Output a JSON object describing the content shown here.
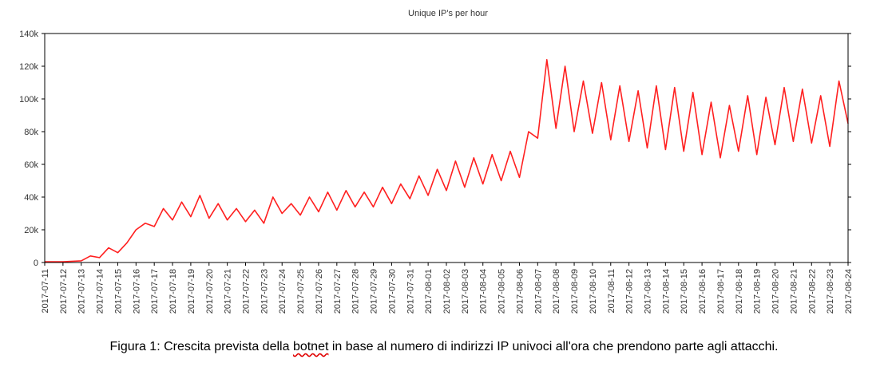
{
  "chart_data": {
    "type": "line",
    "title": "Unique IP's per hour",
    "xlabel": "",
    "ylabel": "",
    "ylim": [
      0,
      140000
    ],
    "yticks": [
      0,
      20000,
      40000,
      60000,
      80000,
      100000,
      120000,
      140000
    ],
    "ytick_labels": [
      "0",
      "20k",
      "40k",
      "60k",
      "80k",
      "100k",
      "120k",
      "140k"
    ],
    "x_start": "2017-07-11",
    "x_end": "2017-08-24",
    "xtick_labels": [
      "2017-07-11",
      "2017-07-12",
      "2017-07-13",
      "2017-07-14",
      "2017-07-15",
      "2017-07-16",
      "2017-07-17",
      "2017-07-18",
      "2017-07-19",
      "2017-07-20",
      "2017-07-21",
      "2017-07-22",
      "2017-07-23",
      "2017-07-24",
      "2017-07-25",
      "2017-07-26",
      "2017-07-27",
      "2017-07-28",
      "2017-07-29",
      "2017-07-30",
      "2017-07-31",
      "2017-08-01",
      "2017-08-02",
      "2017-08-03",
      "2017-08-04",
      "2017-08-05",
      "2017-08-06",
      "2017-08-07",
      "2017-08-08",
      "2017-08-09",
      "2017-08-10",
      "2017-08-11",
      "2017-08-12",
      "2017-08-13",
      "2017-08-14",
      "2017-08-15",
      "2017-08-16",
      "2017-08-17",
      "2017-08-18",
      "2017-08-19",
      "2017-08-20",
      "2017-08-21",
      "2017-08-22",
      "2017-08-23",
      "2017-08-24"
    ],
    "grid": false,
    "legend": "none",
    "series": [
      {
        "color": "#ff2020",
        "x": [
          "2017-07-11",
          "2017-07-12",
          "2017-07-13",
          "2017-07-13 12:00",
          "2017-07-14",
          "2017-07-14 12:00",
          "2017-07-15",
          "2017-07-15 12:00",
          "2017-07-16",
          "2017-07-16 12:00",
          "2017-07-17",
          "2017-07-17 12:00",
          "2017-07-18",
          "2017-07-18 12:00",
          "2017-07-19",
          "2017-07-19 12:00",
          "2017-07-20",
          "2017-07-20 12:00",
          "2017-07-21",
          "2017-07-21 12:00",
          "2017-07-22",
          "2017-07-22 12:00",
          "2017-07-23",
          "2017-07-23 12:00",
          "2017-07-24",
          "2017-07-24 12:00",
          "2017-07-25",
          "2017-07-25 12:00",
          "2017-07-26",
          "2017-07-26 12:00",
          "2017-07-27",
          "2017-07-27 12:00",
          "2017-07-28",
          "2017-07-28 12:00",
          "2017-07-29",
          "2017-07-29 12:00",
          "2017-07-30",
          "2017-07-30 12:00",
          "2017-07-31",
          "2017-07-31 12:00",
          "2017-08-01",
          "2017-08-01 12:00",
          "2017-08-02",
          "2017-08-02 12:00",
          "2017-08-03",
          "2017-08-03 12:00",
          "2017-08-04",
          "2017-08-04 12:00",
          "2017-08-05",
          "2017-08-05 12:00",
          "2017-08-06",
          "2017-08-06 12:00",
          "2017-08-07",
          "2017-08-07 12:00",
          "2017-08-08",
          "2017-08-08 12:00",
          "2017-08-09",
          "2017-08-09 12:00",
          "2017-08-10",
          "2017-08-10 12:00",
          "2017-08-11",
          "2017-08-11 12:00",
          "2017-08-12",
          "2017-08-12 12:00",
          "2017-08-13",
          "2017-08-13 12:00",
          "2017-08-14",
          "2017-08-14 12:00",
          "2017-08-15",
          "2017-08-15 12:00",
          "2017-08-16",
          "2017-08-16 12:00",
          "2017-08-17",
          "2017-08-17 12:00",
          "2017-08-18",
          "2017-08-18 12:00",
          "2017-08-19",
          "2017-08-19 12:00",
          "2017-08-20",
          "2017-08-20 12:00",
          "2017-08-21",
          "2017-08-21 12:00",
          "2017-08-22",
          "2017-08-22 12:00",
          "2017-08-23",
          "2017-08-23 12:00",
          "2017-08-24"
        ],
        "y": [
          500,
          500,
          1000,
          4000,
          3000,
          9000,
          6000,
          12000,
          20000,
          24000,
          22000,
          33000,
          26000,
          37000,
          28000,
          41000,
          27000,
          36000,
          26000,
          33000,
          25000,
          32000,
          24000,
          40000,
          30000,
          36000,
          29000,
          40000,
          31000,
          43000,
          32000,
          44000,
          34000,
          43000,
          34000,
          46000,
          36000,
          48000,
          39000,
          53000,
          41000,
          57000,
          44000,
          62000,
          46000,
          64000,
          48000,
          66000,
          50000,
          68000,
          52000,
          80000,
          76000,
          124000,
          82000,
          120000,
          80000,
          111000,
          79000,
          110000,
          75000,
          108000,
          74000,
          105000,
          70000,
          108000,
          69000,
          107000,
          68000,
          104000,
          66000,
          98000,
          64000,
          96000,
          68000,
          102000,
          66000,
          101000,
          72000,
          107000,
          74000,
          106000,
          73000,
          102000,
          71000,
          111000,
          85000
        ]
      }
    ]
  },
  "caption": {
    "before": "Figura 1: Crescita prevista della ",
    "word": "botnet",
    "after": " in base al numero di indirizzi IP univoci all'ora che prendono parte agli attacchi."
  }
}
